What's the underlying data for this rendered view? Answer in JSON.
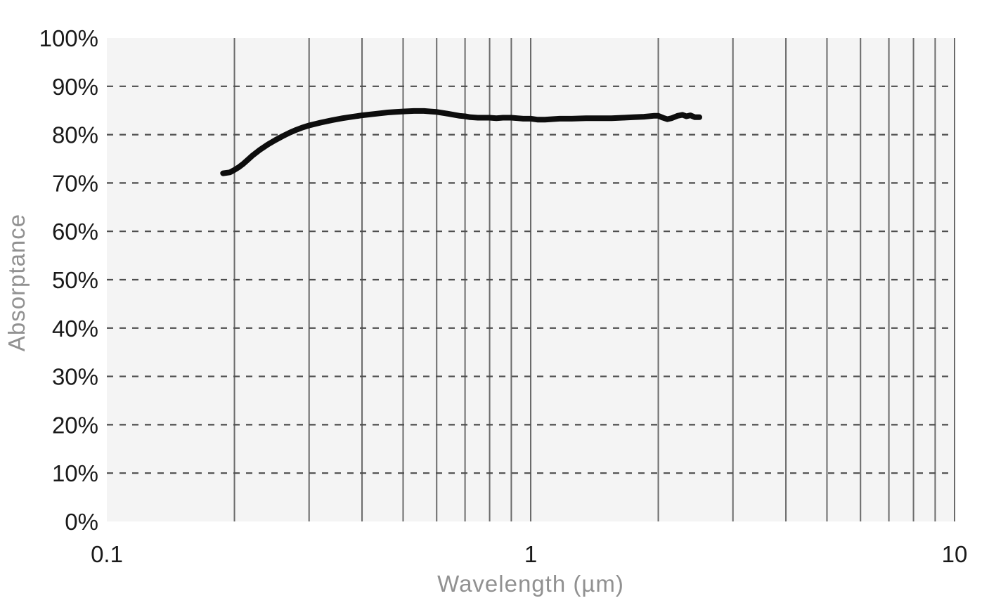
{
  "chart_data": {
    "type": "line",
    "title": "",
    "xlabel": "Wavelength (µm)",
    "ylabel": "Absorptance",
    "x_scale": "log",
    "xlim": [
      0.1,
      10
    ],
    "ylim": [
      0,
      100
    ],
    "x_tick_values": [
      0.1,
      1,
      10
    ],
    "x_tick_labels": [
      "0.1",
      "1",
      "10"
    ],
    "x_gridline_values": [
      0.2,
      0.3,
      0.4,
      0.5,
      0.6,
      0.7,
      0.8,
      0.9,
      1,
      2,
      3,
      4,
      5,
      6,
      7,
      8,
      9,
      10
    ],
    "y_tick_values": [
      0,
      10,
      20,
      30,
      40,
      50,
      60,
      70,
      80,
      90,
      100
    ],
    "y_tick_labels": [
      "0%",
      "10%",
      "20%",
      "30%",
      "40%",
      "50%",
      "60%",
      "70%",
      "80%",
      "90%",
      "100%"
    ],
    "y_dashed_gridline_values": [
      10,
      20,
      30,
      40,
      50,
      60,
      70,
      80,
      90
    ],
    "grid": {
      "vertical": "solid",
      "horizontal": "dashed"
    },
    "legend": "none",
    "colors": {
      "plot_background": "#f4f4f4",
      "vertical_gridline": "#6a6a6a",
      "horizontal_gridline": "#4d4d4d",
      "series_line": "#0d0d0d",
      "tick_label": "#1a1a1a",
      "axis_title": "#919191"
    },
    "series": [
      {
        "name": "Absorptance",
        "color": "#0d0d0d",
        "points": [
          [
            0.188,
            72.0
          ],
          [
            0.195,
            72.2
          ],
          [
            0.2,
            72.7
          ],
          [
            0.205,
            73.3
          ],
          [
            0.21,
            74.0
          ],
          [
            0.215,
            74.8
          ],
          [
            0.22,
            75.6
          ],
          [
            0.23,
            76.9
          ],
          [
            0.24,
            78.0
          ],
          [
            0.25,
            78.9
          ],
          [
            0.26,
            79.7
          ],
          [
            0.27,
            80.4
          ],
          [
            0.28,
            81.0
          ],
          [
            0.29,
            81.5
          ],
          [
            0.3,
            81.9
          ],
          [
            0.32,
            82.5
          ],
          [
            0.34,
            83.0
          ],
          [
            0.36,
            83.4
          ],
          [
            0.38,
            83.7
          ],
          [
            0.4,
            84.0
          ],
          [
            0.42,
            84.2
          ],
          [
            0.44,
            84.4
          ],
          [
            0.46,
            84.6
          ],
          [
            0.48,
            84.7
          ],
          [
            0.5,
            84.8
          ],
          [
            0.53,
            84.9
          ],
          [
            0.56,
            84.9
          ],
          [
            0.58,
            84.8
          ],
          [
            0.6,
            84.7
          ],
          [
            0.63,
            84.4
          ],
          [
            0.66,
            84.1
          ],
          [
            0.68,
            83.9
          ],
          [
            0.7,
            83.8
          ],
          [
            0.72,
            83.6
          ],
          [
            0.75,
            83.5
          ],
          [
            0.78,
            83.5
          ],
          [
            0.8,
            83.5
          ],
          [
            0.83,
            83.4
          ],
          [
            0.86,
            83.5
          ],
          [
            0.9,
            83.5
          ],
          [
            0.93,
            83.4
          ],
          [
            0.96,
            83.3
          ],
          [
            1.0,
            83.3
          ],
          [
            1.04,
            83.1
          ],
          [
            1.08,
            83.1
          ],
          [
            1.12,
            83.2
          ],
          [
            1.17,
            83.3
          ],
          [
            1.25,
            83.3
          ],
          [
            1.35,
            83.4
          ],
          [
            1.45,
            83.4
          ],
          [
            1.55,
            83.4
          ],
          [
            1.65,
            83.5
          ],
          [
            1.75,
            83.6
          ],
          [
            1.85,
            83.7
          ],
          [
            1.95,
            83.9
          ],
          [
            2.0,
            83.9
          ],
          [
            2.05,
            83.5
          ],
          [
            2.1,
            83.2
          ],
          [
            2.15,
            83.4
          ],
          [
            2.22,
            83.9
          ],
          [
            2.28,
            84.1
          ],
          [
            2.33,
            83.8
          ],
          [
            2.38,
            84.0
          ],
          [
            2.44,
            83.6
          ],
          [
            2.5,
            83.6
          ]
        ]
      }
    ]
  }
}
